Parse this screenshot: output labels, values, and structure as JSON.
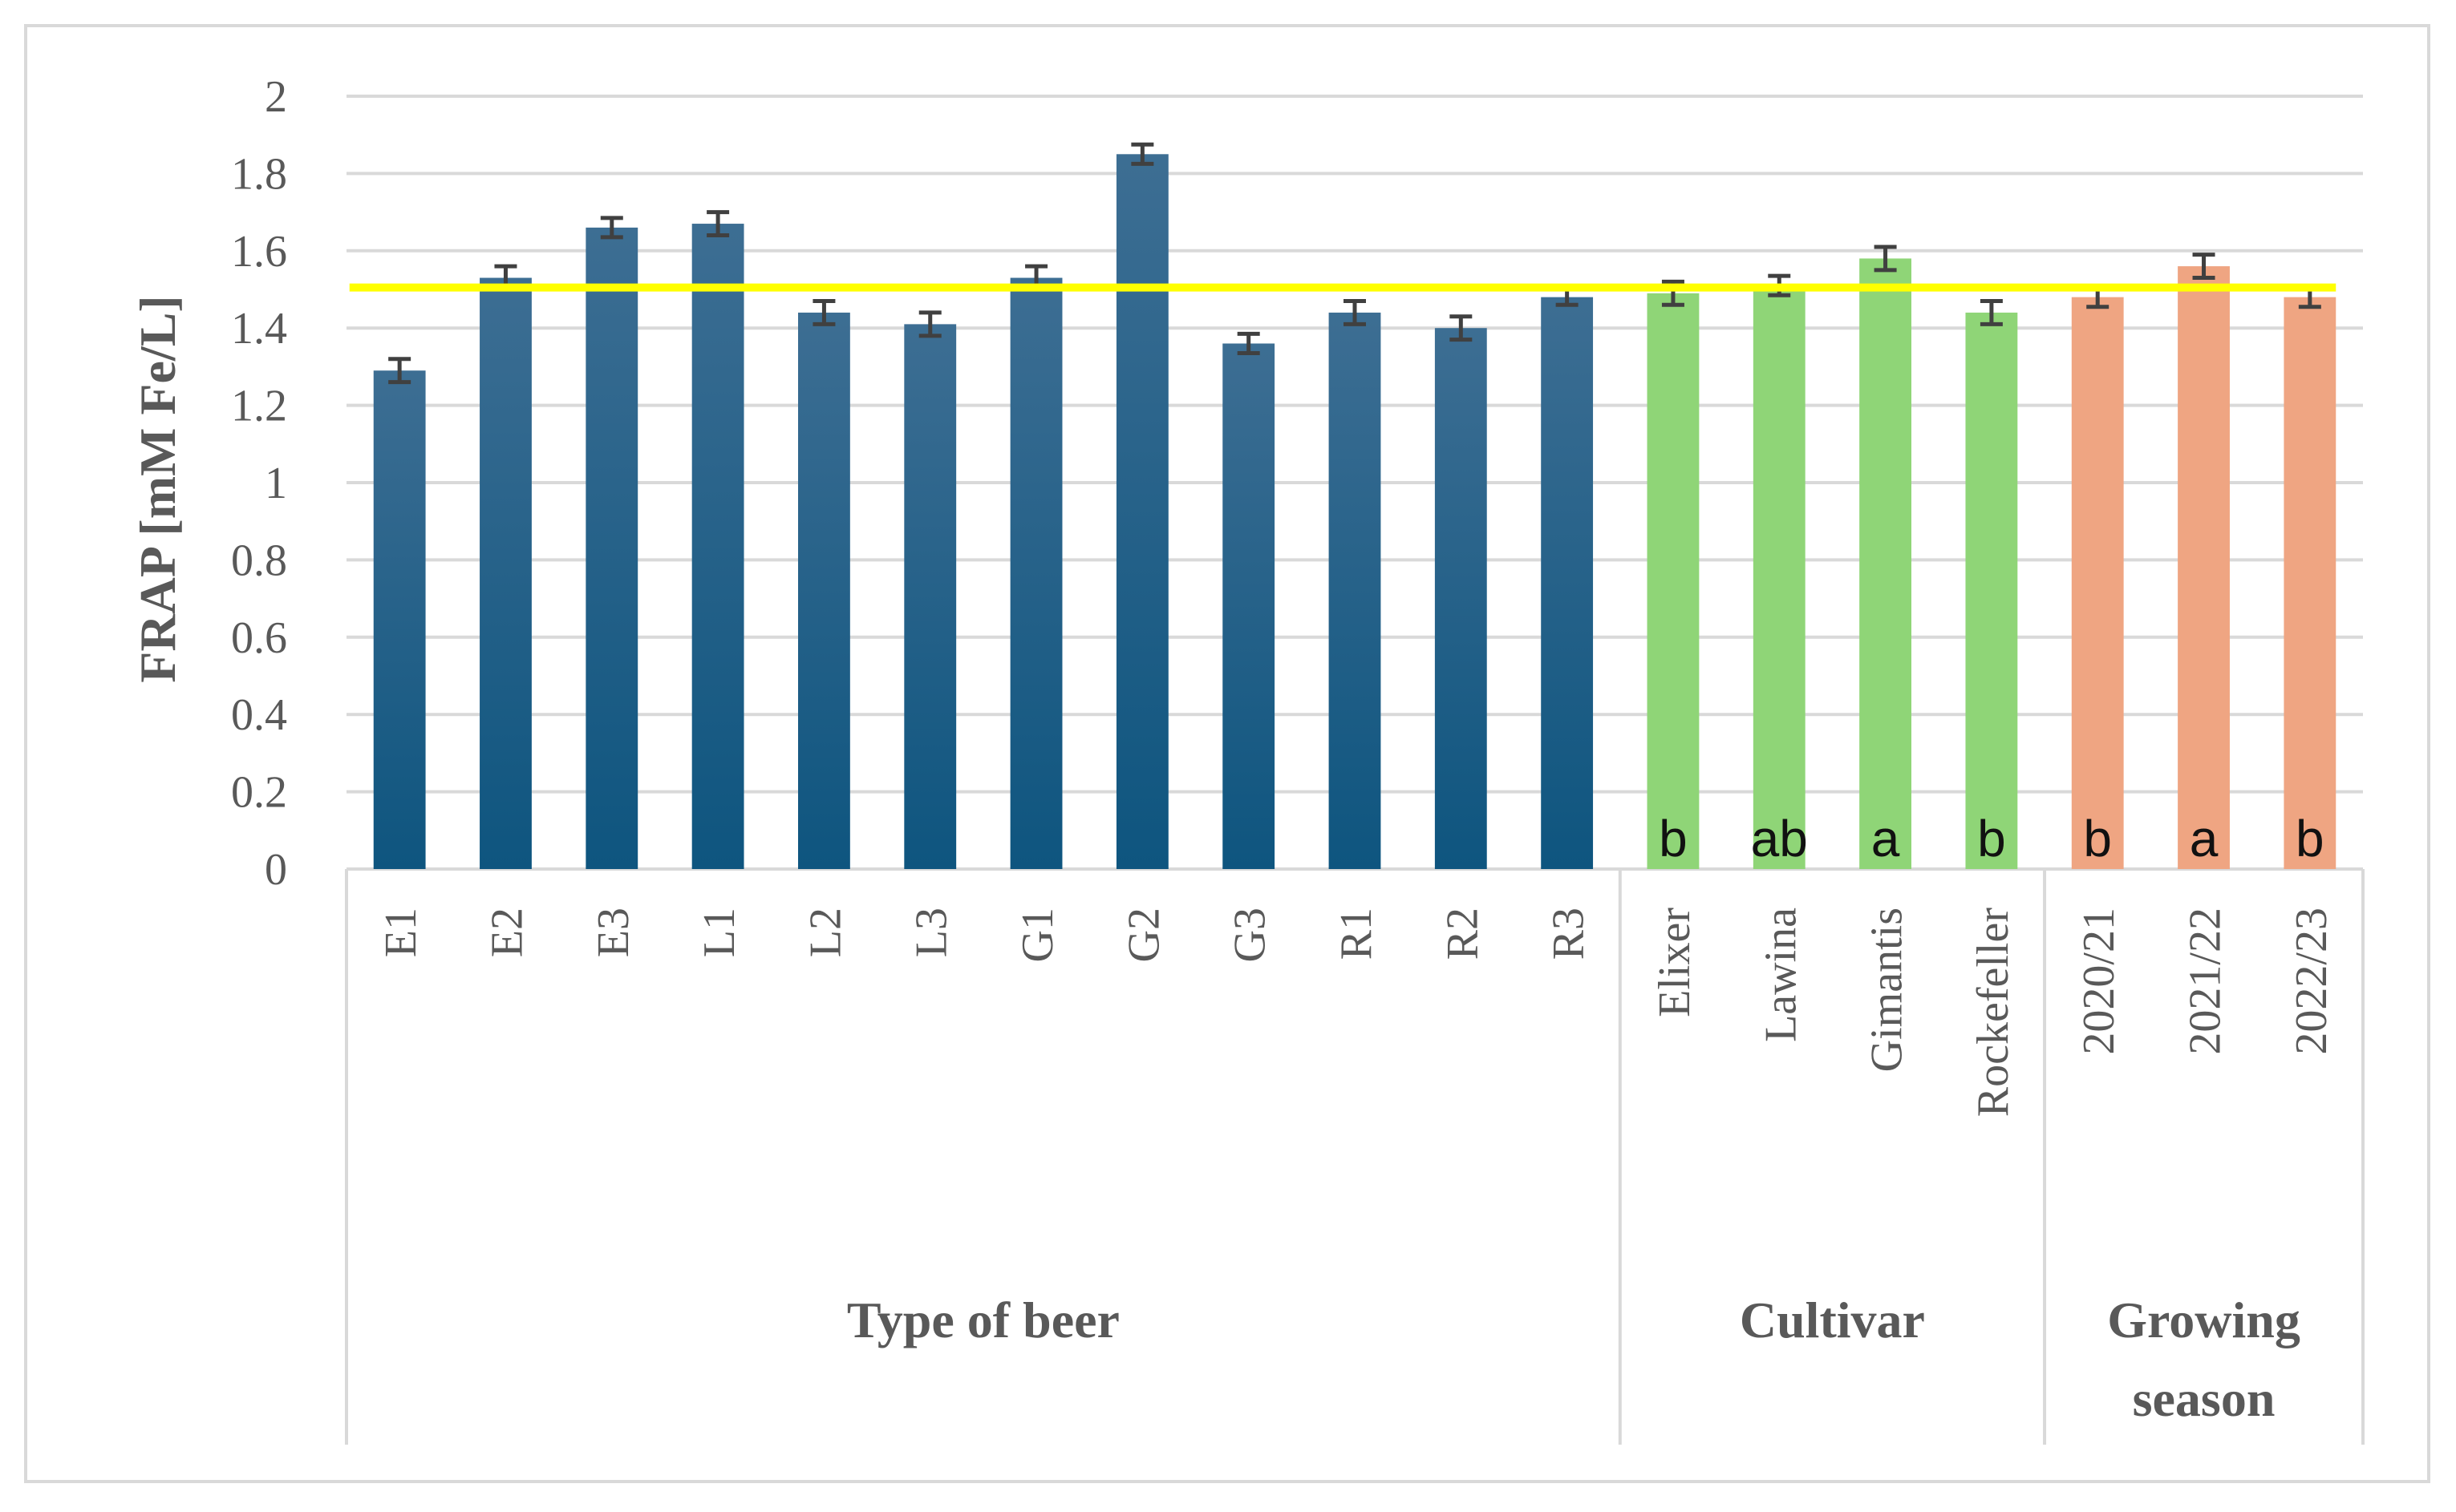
{
  "chart_data": {
    "type": "bar",
    "ylabel": "FRAP [mM Fe/L]",
    "xlabel": "",
    "ylim": [
      0,
      2
    ],
    "ytick_step": 0.2,
    "yticks": [
      "0",
      "0.2",
      "0.4",
      "0.6",
      "0.8",
      "1",
      "1.2",
      "1.4",
      "1.6",
      "1.8",
      "2"
    ],
    "grid": true,
    "legend": "none",
    "reference_line": {
      "value": 1.505,
      "color": "#ffff00"
    },
    "colors": {
      "blue_top": "#3d6e93",
      "blue_bottom": "#0e557f",
      "green": "#8fd577",
      "orange": "#efa582",
      "error": "#404040",
      "grid": "#d9d9d9"
    },
    "categories": [
      "E1",
      "E2",
      "E3",
      "L1",
      "L2",
      "L3",
      "G1",
      "G2",
      "G3",
      "R1",
      "R2",
      "R3",
      "Elixer",
      "Lawina",
      "Gimantis",
      "Rockefeller",
      "2020/21",
      "2021/22",
      "2022/23"
    ],
    "values": [
      1.29,
      1.53,
      1.66,
      1.67,
      1.44,
      1.41,
      1.53,
      1.85,
      1.36,
      1.44,
      1.4,
      1.48,
      1.49,
      1.51,
      1.58,
      1.44,
      1.48,
      1.56,
      1.48
    ],
    "errors": [
      0.03,
      0.03,
      0.025,
      0.03,
      0.03,
      0.03,
      0.03,
      0.025,
      0.025,
      0.03,
      0.03,
      0.02,
      0.03,
      0.025,
      0.03,
      0.03,
      0.025,
      0.03,
      0.025
    ],
    "series_color": [
      "blue",
      "blue",
      "blue",
      "blue",
      "blue",
      "blue",
      "blue",
      "blue",
      "blue",
      "blue",
      "blue",
      "blue",
      "green",
      "green",
      "green",
      "green",
      "orange",
      "orange",
      "orange"
    ],
    "letters": [
      "",
      "",
      "",
      "",
      "",
      "",
      "",
      "",
      "",
      "",
      "",
      "",
      "b",
      "ab",
      "a",
      "b",
      "b",
      "a",
      "b"
    ],
    "groups": [
      {
        "label": "Type of beer",
        "lines": [
          "Type of beer"
        ],
        "start": 0,
        "end": 11
      },
      {
        "label": "Cultivar",
        "lines": [
          "Cultivar"
        ],
        "start": 12,
        "end": 15
      },
      {
        "label": "Growing season",
        "lines": [
          "Growing",
          "season"
        ],
        "start": 16,
        "end": 18
      }
    ]
  }
}
